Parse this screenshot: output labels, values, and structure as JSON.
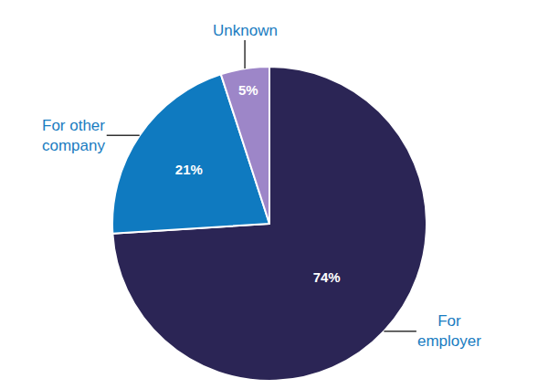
{
  "chart_data": {
    "type": "pie",
    "categories": [
      "For employer",
      "For other company",
      "Unknown"
    ],
    "values": [
      74,
      21,
      5
    ],
    "value_labels": [
      "74%",
      "21%",
      "5%"
    ],
    "colors": [
      "#2b2555",
      "#0f7ac0",
      "#9d86c8"
    ],
    "data_labels": true
  }
}
